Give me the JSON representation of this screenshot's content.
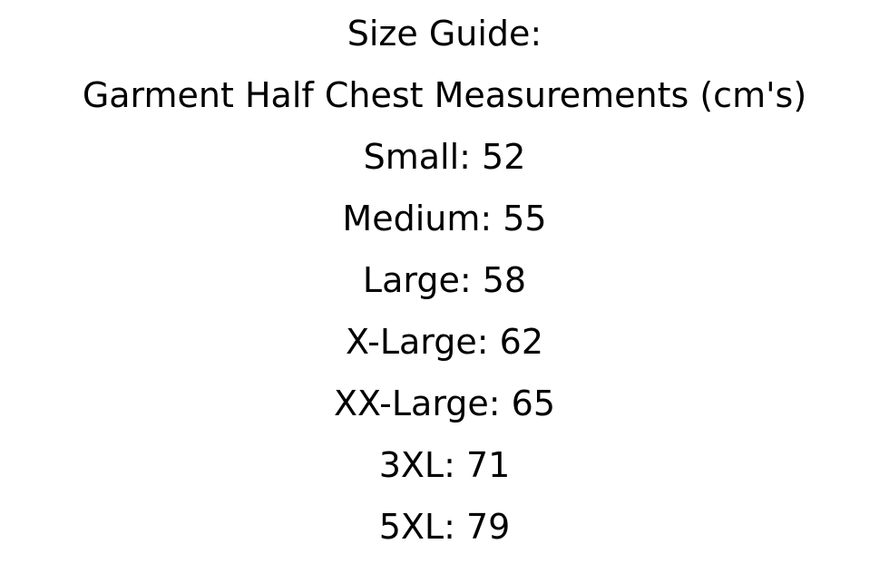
{
  "size_guide": {
    "title": "Size Guide:",
    "subtitle": "Garment Half Chest Measurements (cm's)",
    "unit": "cm",
    "text_color": "#000000",
    "background_color": "#ffffff",
    "entries": [
      {
        "size": "Small",
        "value": 52,
        "text": "Small: 52"
      },
      {
        "size": "Medium",
        "value": 55,
        "text": "Medium: 55"
      },
      {
        "size": "Large",
        "value": 58,
        "text": "Large: 58"
      },
      {
        "size": "X-Large",
        "value": 62,
        "text": "X-Large: 62"
      },
      {
        "size": "XX-Large",
        "value": 65,
        "text": "XX-Large: 65"
      },
      {
        "size": "3XL",
        "value": 71,
        "text": "3XL: 71"
      },
      {
        "size": "5XL",
        "value": 79,
        "text": "5XL: 79"
      }
    ]
  }
}
